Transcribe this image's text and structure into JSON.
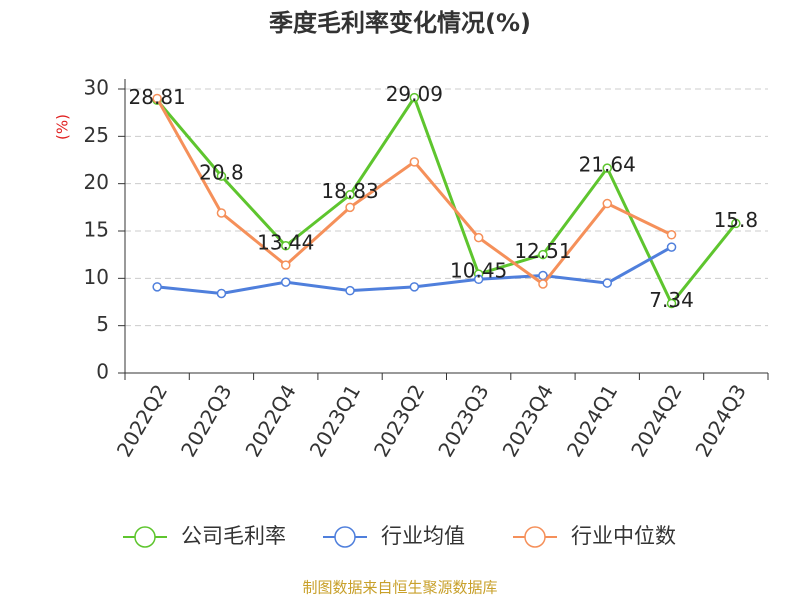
{
  "chart_data": {
    "type": "line",
    "title": "季度毛利率变化情况(%)",
    "y_label": "(%)",
    "categories": [
      "2022Q2",
      "2022Q3",
      "2022Q4",
      "2023Q1",
      "2023Q2",
      "2023Q3",
      "2023Q4",
      "2024Q1",
      "2024Q2",
      "2024Q3"
    ],
    "series": [
      {
        "name": "公司毛利率",
        "color": "#5ec52e",
        "values": [
          28.81,
          20.8,
          13.44,
          18.83,
          29.09,
          10.45,
          12.51,
          21.64,
          7.34,
          15.8
        ],
        "data_labels": true
      },
      {
        "name": "行业均值",
        "color": "#4f7fdc",
        "values": [
          9.1,
          8.4,
          9.6,
          8.7,
          9.1,
          9.9,
          10.3,
          9.5,
          13.3,
          null
        ]
      },
      {
        "name": "行业中位数",
        "color": "#f5905a",
        "values": [
          29.0,
          16.9,
          11.4,
          17.5,
          22.3,
          14.3,
          9.4,
          17.9,
          14.6,
          null
        ]
      }
    ],
    "ylim": [
      0,
      30
    ],
    "yticks": [
      0,
      5,
      10,
      15,
      20,
      25,
      30
    ],
    "grid": true,
    "source": "制图数据来自恒生聚源数据库"
  }
}
